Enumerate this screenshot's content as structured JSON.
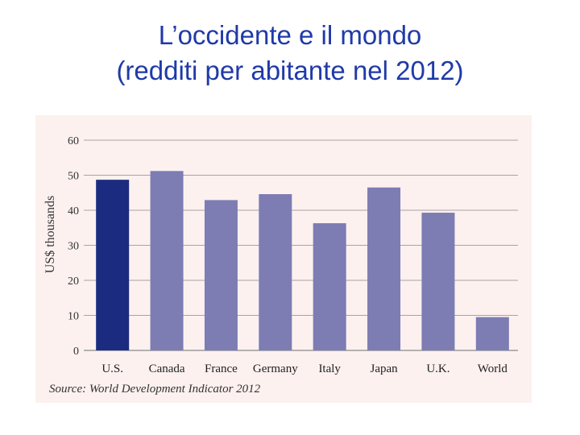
{
  "slide": {
    "title_line1": "L’occidente e il mondo",
    "title_line2": "(redditi per abitante nel 2012)"
  },
  "chart_data": {
    "type": "bar",
    "title": "L’occidente e il mondo (redditi per abitante nel 2012)",
    "categories": [
      "U.S.",
      "Canada",
      "France",
      "Germany",
      "Italy",
      "Japan",
      "U.K.",
      "World"
    ],
    "values": [
      48.7,
      51.2,
      42.9,
      44.6,
      36.3,
      46.5,
      39.3,
      9.5
    ],
    "highlight_index": 0,
    "colors": {
      "highlight": "#1b2c80",
      "bar": "#7d7db4",
      "grid": "#8a8a8a",
      "background": "#fcf1ef"
    },
    "xlabel": "",
    "ylabel": "US$ thousands",
    "ylim": [
      0,
      60
    ],
    "yticks": [
      0,
      10,
      20,
      30,
      40,
      50,
      60
    ],
    "grid": true,
    "source": "Source: World Development Indicator 2012"
  }
}
